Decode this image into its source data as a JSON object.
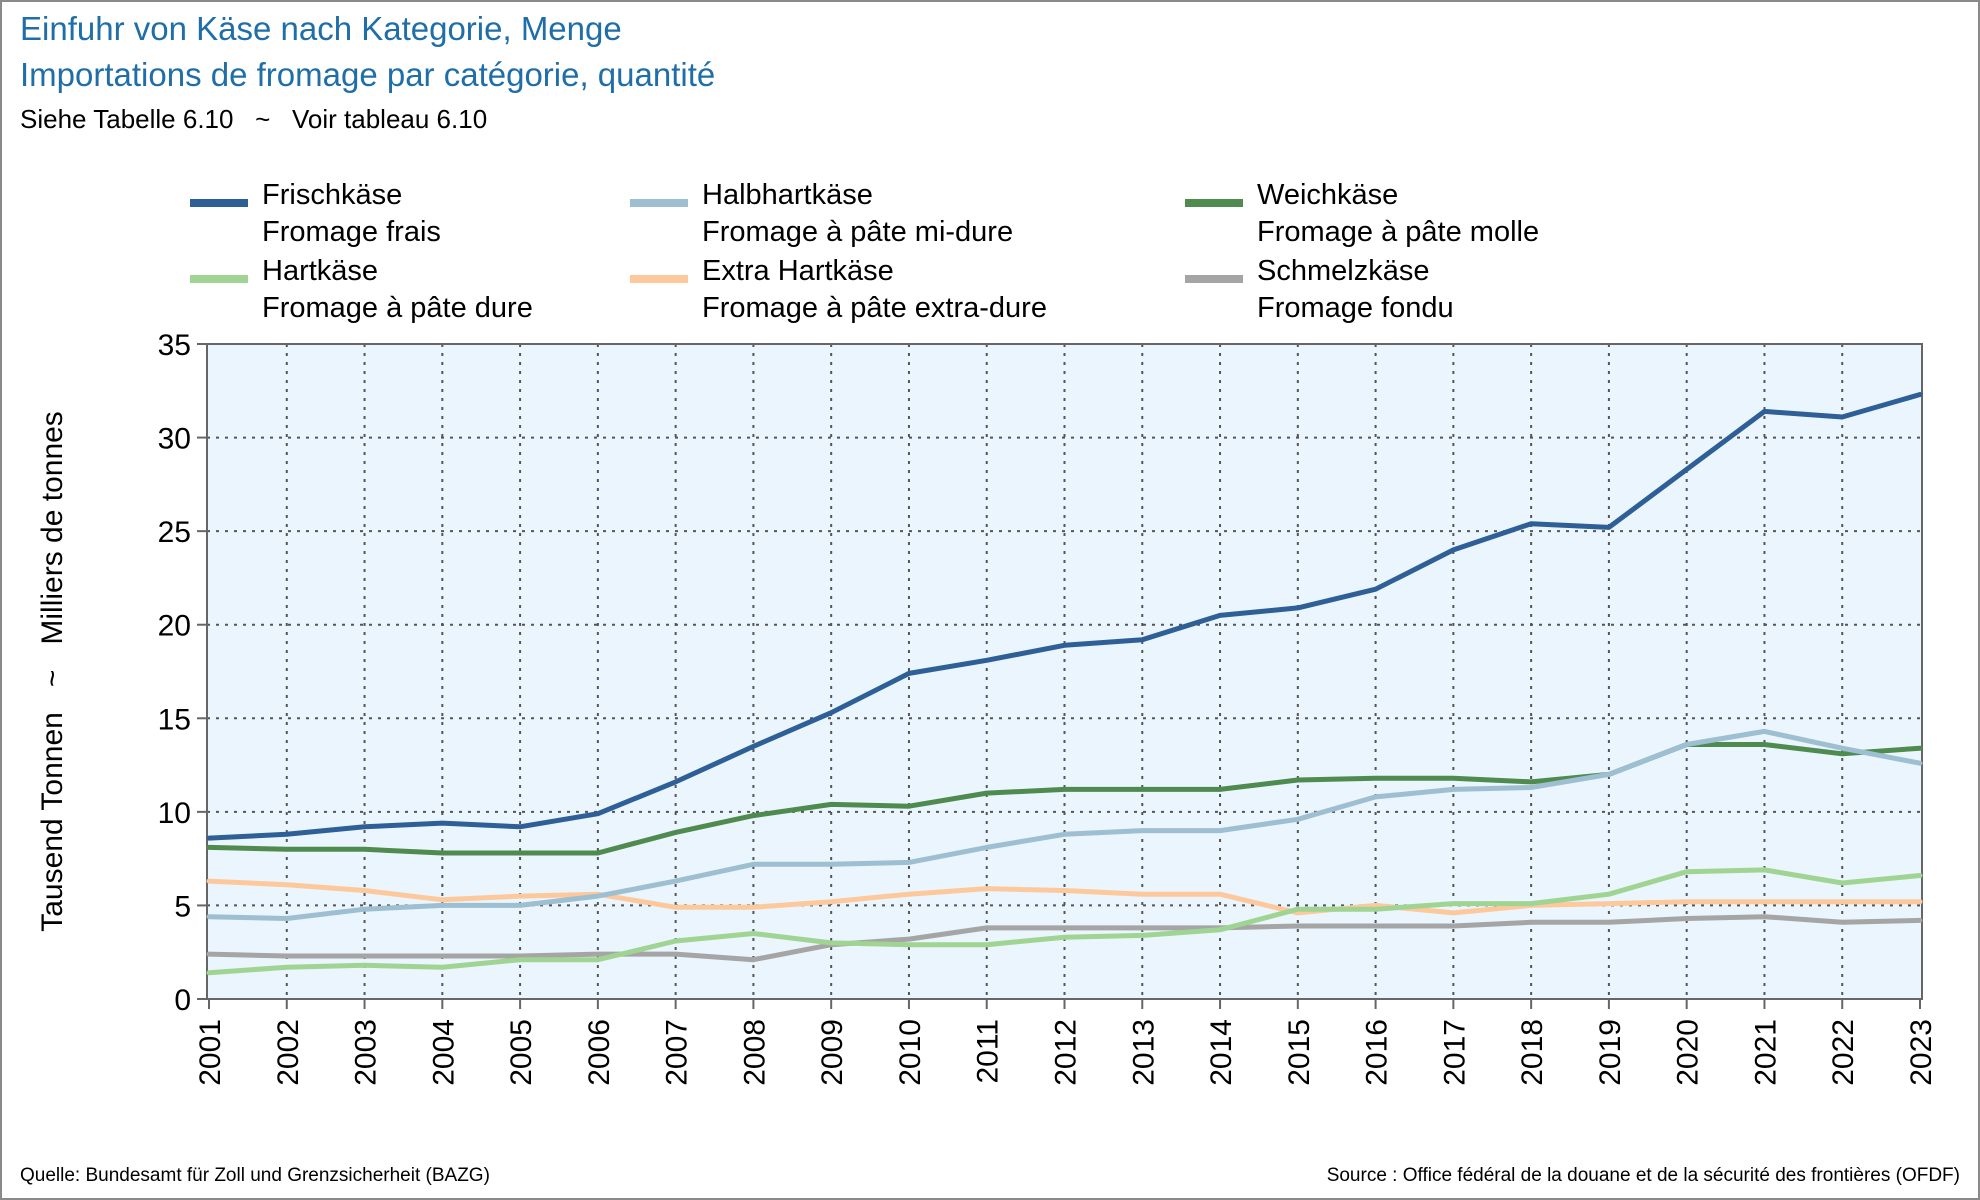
{
  "header": {
    "title_de": "Einfuhr von Käse nach Kategorie, Menge",
    "title_fr": "Importations de fromage par catégorie, quantité",
    "subtitle": "Siehe Tabelle 6.10   ~   Voir tableau 6.10"
  },
  "footer": {
    "source_de": "Quelle: Bundesamt für Zoll und Grenzsicherheit (BAZG)",
    "source_fr": "Source : Office fédéral de la douane et de la sécurité des frontières (OFDF)"
  },
  "colors": {
    "plot_background": "#eaf5fd",
    "grid": "#555555",
    "axis": "#666666"
  },
  "chart_data": {
    "type": "line",
    "ylabel": "Tausend Tonnen   ~   Milliers de tonnes",
    "ylim": [
      0,
      35
    ],
    "yticks": [
      "0",
      "5",
      "10",
      "15",
      "20",
      "25",
      "30",
      "35"
    ],
    "grid": true,
    "legend_placement": "top",
    "x": [
      "2001",
      "2002",
      "2003",
      "2004",
      "2005",
      "2006",
      "2007",
      "2008",
      "2009",
      "2010",
      "2011",
      "2012",
      "2013",
      "2014",
      "2015",
      "2016",
      "2017",
      "2018",
      "2019",
      "2020",
      "2021",
      "2022",
      "2023"
    ],
    "series": [
      {
        "name": "Frischkäse",
        "name_fr": "Fromage frais",
        "color": "#2e5f96",
        "values": [
          8.6,
          8.8,
          9.2,
          9.4,
          9.2,
          9.9,
          11.6,
          13.5,
          15.3,
          17.4,
          18.1,
          18.9,
          19.2,
          20.5,
          20.9,
          21.9,
          24.0,
          25.4,
          25.2,
          28.3,
          31.4,
          31.1,
          32.3
        ]
      },
      {
        "name": "Halbhartkäse",
        "name_fr": "Fromage à pâte mi-dure",
        "color": "#9dbfd1",
        "values": [
          4.4,
          4.3,
          4.8,
          5.0,
          5.0,
          5.5,
          6.3,
          7.2,
          7.2,
          7.3,
          8.1,
          8.8,
          9.0,
          9.0,
          9.6,
          10.8,
          11.2,
          11.3,
          12.0,
          13.6,
          14.3,
          13.4,
          12.6
        ]
      },
      {
        "name": "Weichkäse",
        "name_fr": "Fromage à pâte molle",
        "color": "#4f8a4f",
        "values": [
          8.1,
          8.0,
          8.0,
          7.8,
          7.8,
          7.8,
          8.9,
          9.8,
          10.4,
          10.3,
          11.0,
          11.2,
          11.2,
          11.2,
          11.7,
          11.8,
          11.8,
          11.6,
          12.0,
          13.6,
          13.6,
          13.1,
          13.4
        ]
      },
      {
        "name": "Hartkäse",
        "name_fr": "Fromage à pâte dure",
        "color": "#a0d493",
        "values": [
          1.4,
          1.7,
          1.8,
          1.7,
          2.1,
          2.1,
          3.1,
          3.5,
          3.0,
          2.9,
          2.9,
          3.3,
          3.4,
          3.7,
          4.8,
          4.8,
          5.1,
          5.1,
          5.6,
          6.8,
          6.9,
          6.2,
          6.6
        ]
      },
      {
        "name": "Extra Hartkäse",
        "name_fr": "Fromage à pâte extra-dure",
        "color": "#fdc99c",
        "values": [
          6.3,
          6.1,
          5.8,
          5.3,
          5.5,
          5.6,
          4.9,
          4.9,
          5.2,
          5.6,
          5.9,
          5.8,
          5.6,
          5.6,
          4.6,
          5.0,
          4.6,
          5.0,
          5.1,
          5.2,
          5.2,
          5.2,
          5.2
        ]
      },
      {
        "name": "Schmelzkäse",
        "name_fr": "Fromage fondu",
        "color": "#a5a5a5",
        "values": [
          2.4,
          2.3,
          2.3,
          2.3,
          2.3,
          2.4,
          2.4,
          2.1,
          2.9,
          3.2,
          3.8,
          3.8,
          3.8,
          3.8,
          3.9,
          3.9,
          3.9,
          4.1,
          4.1,
          4.3,
          4.4,
          4.1,
          4.2
        ]
      }
    ]
  }
}
